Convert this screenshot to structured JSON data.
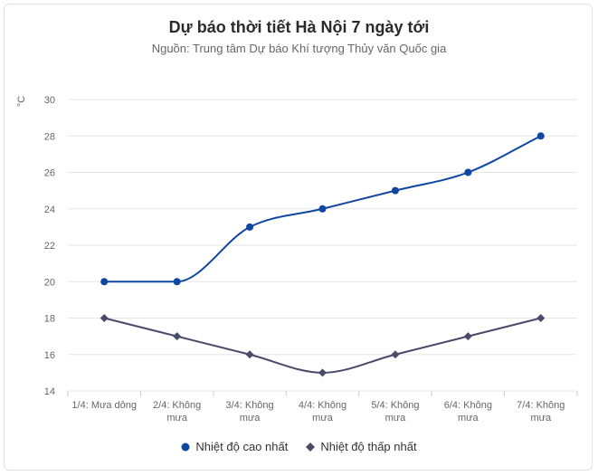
{
  "chart_data": {
    "type": "line",
    "title": "Dự báo thời tiết Hà Nội 7 ngày tới",
    "subtitle": "Nguồn: Trung tâm Dự báo Khí tượng Thủy văn Quốc gia",
    "ylabel": "°C",
    "xlabel": "",
    "ylim": [
      14,
      30
    ],
    "yticks": [
      14,
      16,
      18,
      20,
      22,
      24,
      26,
      28,
      30
    ],
    "grid": true,
    "legend_position": "bottom",
    "categories": [
      [
        "1/4: Mưa dông"
      ],
      [
        "2/4: Không",
        "mưa"
      ],
      [
        "3/4: Không",
        "mưa"
      ],
      [
        "4/4: Không",
        "mưa"
      ],
      [
        "5/4: Không",
        "mưa"
      ],
      [
        "6/4: Không",
        "mưa"
      ],
      [
        "7/4: Không",
        "mưa"
      ]
    ],
    "series": [
      {
        "name": "Nhiệt độ cao nhất",
        "values": [
          20,
          20,
          23,
          24,
          25,
          26,
          28
        ],
        "color": "#0d47a1",
        "marker": "circle",
        "smooth": true
      },
      {
        "name": "Nhiệt độ thấp nhất",
        "values": [
          18,
          17,
          16,
          15,
          16,
          17,
          18
        ],
        "color": "#4a4a6a",
        "marker": "diamond",
        "smooth": true
      }
    ]
  }
}
